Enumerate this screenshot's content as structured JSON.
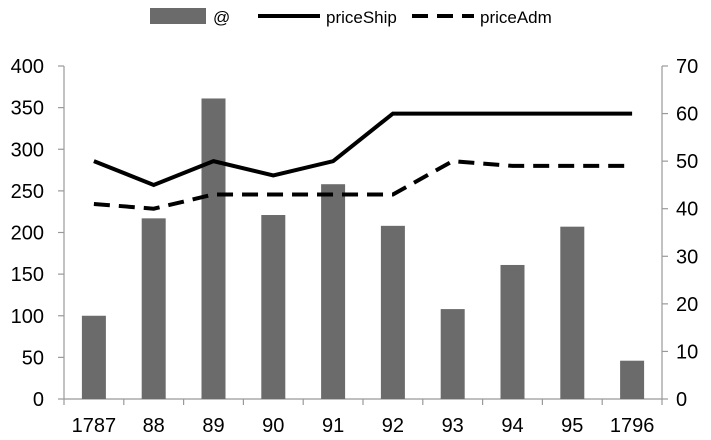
{
  "chart_data": {
    "type": "bar",
    "categories": [
      "1787",
      "88",
      "89",
      "90",
      "91",
      "92",
      "93",
      "94",
      "95",
      "1796"
    ],
    "legend_position": "top",
    "grid": false,
    "y_left": {
      "range": [
        0,
        400
      ],
      "ticks": [
        0,
        50,
        100,
        150,
        200,
        250,
        300,
        350,
        400
      ]
    },
    "y_right": {
      "range": [
        0,
        70
      ],
      "ticks": [
        0,
        10,
        20,
        30,
        40,
        50,
        60,
        70
      ]
    },
    "series": [
      {
        "name": "@",
        "kind": "bar",
        "axis": "left",
        "color": "#6b6b6b",
        "values": [
          100,
          217,
          361,
          221,
          258,
          208,
          108,
          161,
          207,
          46
        ]
      },
      {
        "name": "priceShip",
        "kind": "line",
        "axis": "right",
        "color": "#000000",
        "dash": "solid",
        "values": [
          50,
          45,
          50,
          47,
          50,
          60,
          60,
          60,
          60,
          60
        ]
      },
      {
        "name": "priceAdm",
        "kind": "line",
        "axis": "right",
        "color": "#000000",
        "dash": "dashed",
        "values": [
          41,
          40,
          43,
          43,
          43,
          43,
          50,
          49,
          49,
          49
        ]
      }
    ]
  }
}
